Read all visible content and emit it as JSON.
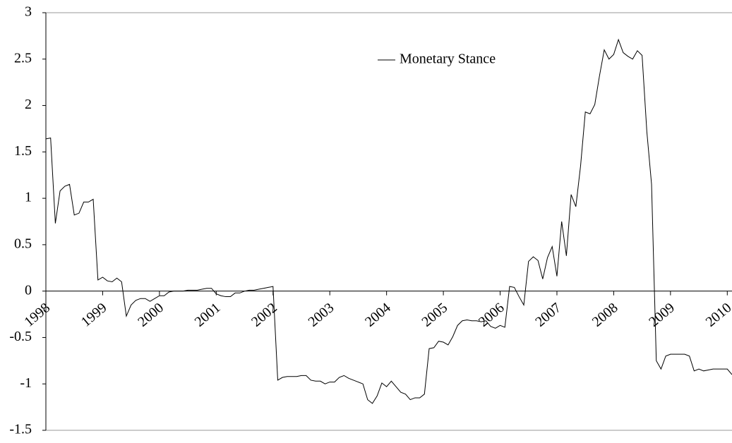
{
  "chart_data": {
    "type": "line",
    "categories": [
      "1998",
      null,
      null,
      null,
      null,
      null,
      null,
      null,
      null,
      null,
      null,
      null,
      "1999",
      null,
      null,
      null,
      null,
      null,
      null,
      null,
      null,
      null,
      null,
      null,
      "2000",
      null,
      null,
      null,
      null,
      null,
      null,
      null,
      null,
      null,
      null,
      null,
      "2001",
      null,
      null,
      null,
      null,
      null,
      null,
      null,
      null,
      null,
      null,
      null,
      "2002",
      null,
      null,
      null,
      null,
      null,
      null,
      null,
      null,
      null,
      null,
      null,
      "2003",
      null,
      null,
      null,
      null,
      null,
      null,
      null,
      null,
      null,
      null,
      null,
      "2004",
      null,
      null,
      null,
      null,
      null,
      null,
      null,
      null,
      null,
      null,
      null,
      "2005",
      null,
      null,
      null,
      null,
      null,
      null,
      null,
      null,
      null,
      null,
      null,
      "2006",
      null,
      null,
      null,
      null,
      null,
      null,
      null,
      null,
      null,
      null,
      null,
      "2007",
      null,
      null,
      null,
      null,
      null,
      null,
      null,
      null,
      null,
      null,
      null,
      "2008",
      null,
      null,
      null,
      null,
      null,
      null,
      null,
      null,
      null,
      null,
      null,
      "2009",
      null,
      null,
      null,
      null,
      null,
      null,
      null,
      null,
      null,
      null,
      null,
      "2010",
      null
    ],
    "series": [
      {
        "name": "Monetary Stance",
        "color": "#000000",
        "values": [
          1.64,
          1.65,
          0.73,
          1.08,
          1.13,
          1.15,
          0.82,
          0.84,
          0.96,
          0.96,
          0.99,
          0.12,
          0.15,
          0.11,
          0.1,
          0.14,
          0.1,
          -0.27,
          -0.15,
          -0.1,
          -0.08,
          -0.08,
          -0.11,
          -0.08,
          -0.05,
          -0.05,
          -0.01,
          0,
          0,
          0,
          0.01,
          0.01,
          0.01,
          0.02,
          0.03,
          0.03,
          -0.03,
          -0.05,
          -0.06,
          -0.06,
          -0.02,
          -0.02,
          0,
          0.01,
          0.01,
          0.02,
          0.03,
          0.04,
          0.05,
          -0.96,
          -0.93,
          -0.92,
          -0.92,
          -0.92,
          -0.91,
          -0.91,
          -0.96,
          -0.97,
          -0.97,
          -1.0,
          -0.98,
          -0.98,
          -0.93,
          -0.91,
          -0.94,
          -0.96,
          -0.98,
          -1.0,
          -1.17,
          -1.21,
          -1.13,
          -0.99,
          -1.03,
          -0.97,
          -1.03,
          -1.09,
          -1.11,
          -1.17,
          -1.15,
          -1.15,
          -1.11,
          -0.62,
          -0.61,
          -0.54,
          -0.55,
          -0.58,
          -0.49,
          -0.37,
          -0.32,
          -0.31,
          -0.32,
          -0.32,
          -0.33,
          -0.32,
          -0.38,
          -0.4,
          -0.37,
          -0.39,
          0.05,
          0.04,
          -0.06,
          -0.15,
          0.32,
          0.37,
          0.33,
          0.13,
          0.36,
          0.48,
          0.16,
          0.75,
          0.38,
          1.04,
          0.91,
          1.35,
          1.93,
          1.91,
          2.01,
          2.32,
          2.6,
          2.5,
          2.55,
          2.71,
          2.57,
          2.53,
          2.5,
          2.59,
          2.54,
          1.72,
          1.15,
          -0.75,
          -0.84,
          -0.7,
          -0.68,
          -0.68,
          -0.68,
          -0.68,
          -0.7,
          -0.86,
          -0.84,
          -0.86,
          -0.85,
          -0.84,
          -0.84,
          -0.84,
          -0.84,
          -0.9
        ]
      }
    ],
    "ylim": [
      -1.5,
      3
    ],
    "yticks": [
      3,
      2.5,
      2,
      1.5,
      1,
      0.5,
      0,
      -0.5,
      -1,
      -1.5
    ],
    "legend": "top-center"
  }
}
